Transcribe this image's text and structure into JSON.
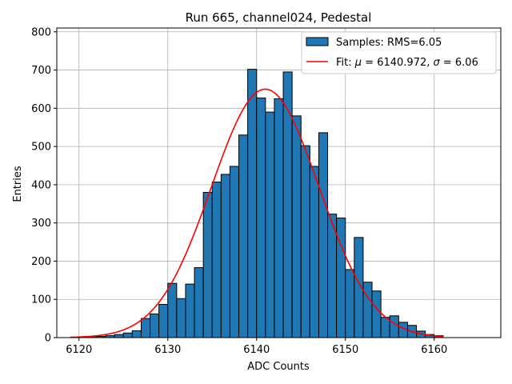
{
  "chart_data": {
    "type": "bar",
    "title": "Run 665, channel024, Pedestal",
    "xlabel": "ADC Counts",
    "ylabel": "Entries",
    "xlim": [
      6117.5,
      6167.5
    ],
    "ylim": [
      0,
      810
    ],
    "grid": true,
    "legend_position": "top-right",
    "xticks": [
      6120,
      6130,
      6140,
      6150,
      6160
    ],
    "yticks": [
      0,
      100,
      200,
      300,
      400,
      500,
      600,
      700,
      800
    ],
    "bar_color": "#1f77b4",
    "fit_color": "#ff0000",
    "legend": {
      "histogram_label": "Samples: RMS=6.05",
      "fit_label_prefix": "Fit: ",
      "fit_mu_symbol": "μ",
      "fit_mu_text": " = 6140.972, ",
      "fit_sigma_symbol": "σ",
      "fit_sigma_text": " = 6.06"
    },
    "histogram": {
      "bin_width": 1,
      "bin_starts": [
        6121,
        6122,
        6123,
        6124,
        6125,
        6126,
        6127,
        6128,
        6129,
        6130,
        6131,
        6132,
        6133,
        6134,
        6135,
        6136,
        6137,
        6138,
        6139,
        6140,
        6141,
        6142,
        6143,
        6144,
        6145,
        6146,
        6147,
        6148,
        6149,
        6150,
        6151,
        6152,
        6153,
        6154,
        6155,
        6156,
        6157,
        6158,
        6159,
        6160
      ],
      "counts": [
        2,
        3,
        5,
        8,
        12,
        18,
        50,
        62,
        87,
        142,
        102,
        140,
        183,
        380,
        407,
        427,
        448,
        530,
        702,
        627,
        590,
        625,
        695,
        580,
        502,
        448,
        536,
        323,
        313,
        178,
        262,
        145,
        122,
        53,
        57,
        40,
        32,
        17,
        8,
        5
      ]
    },
    "fit": {
      "mu": 6140.972,
      "sigma": 6.06,
      "amplitude": 650,
      "x_range": [
        6119,
        6161
      ]
    }
  }
}
